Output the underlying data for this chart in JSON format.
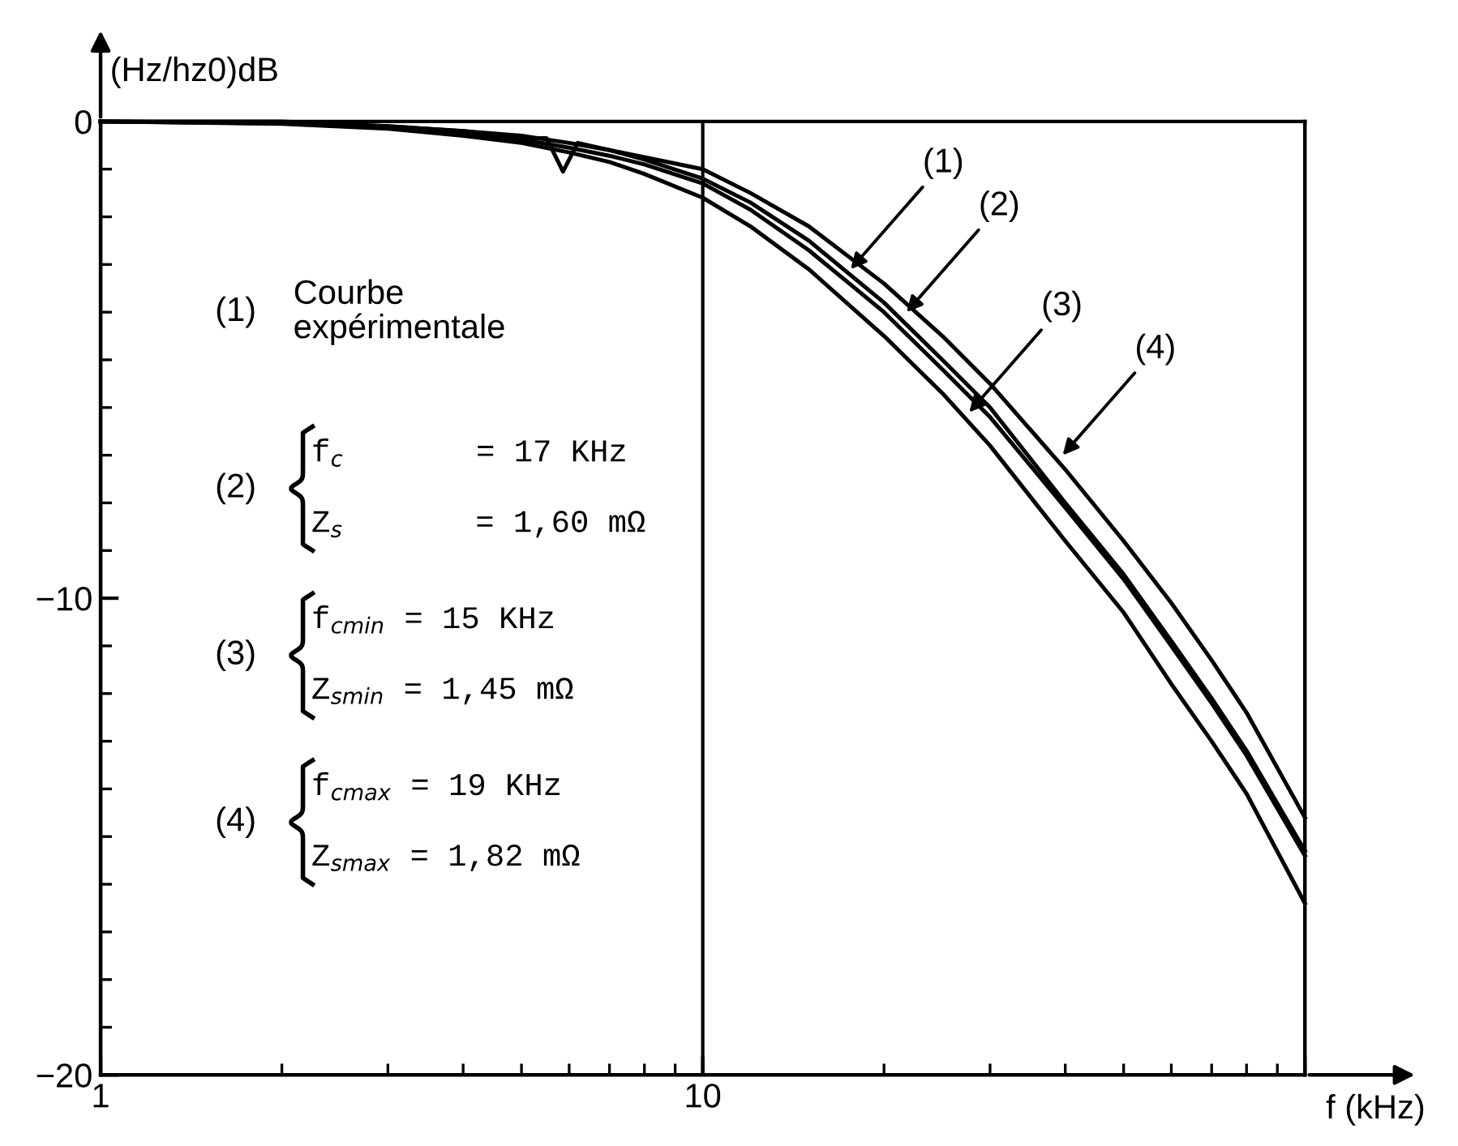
{
  "chart_data": {
    "type": "line",
    "xlabel": "f (kHz)",
    "ylabel": "(Hz/hz0)dB",
    "log": "x",
    "xlim": [
      1,
      100
    ],
    "ylim": [
      -20,
      0
    ],
    "xticks": [
      1,
      10,
      {
        "value": 100,
        "label": null
      }
    ],
    "yticks": [
      -20,
      -10,
      0
    ],
    "grid": "x",
    "series": [
      {
        "color": "#000000",
        "x": [
          1,
          2,
          3,
          4,
          5,
          5.5,
          5.86,
          6.2,
          7,
          8,
          10,
          12,
          15,
          20,
          25,
          30,
          40,
          50,
          60,
          70,
          80,
          100
        ],
        "values": [
          0,
          0,
          -0.1,
          -0.2,
          -0.35,
          -0.35,
          -1.05,
          -0.45,
          -0.6,
          -0.8,
          -1.2,
          -1.7,
          -2.5,
          -3.8,
          -5.0,
          -6.0,
          -8.0,
          -9.5,
          -10.9,
          -12.1,
          -13.2,
          -15.3
        ]
      },
      {
        "color": "#000000",
        "x": [
          1,
          2,
          3,
          4,
          5,
          6,
          7,
          8,
          10,
          12,
          15,
          20,
          25,
          30,
          40,
          50,
          60,
          70,
          80,
          100
        ],
        "values": [
          0,
          -0.04,
          -0.12,
          -0.25,
          -0.38,
          -0.55,
          -0.72,
          -0.9,
          -1.3,
          -1.85,
          -2.7,
          -4.0,
          -5.2,
          -6.2,
          -8.1,
          -9.6,
          -11.0,
          -12.2,
          -13.3,
          -15.4
        ]
      },
      {
        "color": "#000000",
        "x": [
          1,
          2,
          3,
          4,
          5,
          6,
          7,
          8,
          10,
          12,
          15,
          20,
          25,
          30,
          40,
          50,
          60,
          70,
          80,
          100
        ],
        "values": [
          0,
          -0.05,
          -0.15,
          -0.3,
          -0.45,
          -0.65,
          -0.85,
          -1.1,
          -1.6,
          -2.2,
          -3.1,
          -4.5,
          -5.7,
          -6.8,
          -8.8,
          -10.3,
          -11.8,
          -13.0,
          -14.1,
          -16.4
        ]
      },
      {
        "color": "#000000",
        "x": [
          1,
          2,
          3,
          4,
          5,
          6,
          7,
          8,
          10,
          12,
          15,
          20,
          25,
          30,
          40,
          50,
          60,
          70,
          80,
          100
        ],
        "values": [
          0,
          -0.03,
          -0.1,
          -0.2,
          -0.3,
          -0.45,
          -0.6,
          -0.75,
          -1.0,
          -1.5,
          -2.2,
          -3.4,
          -4.5,
          -5.5,
          -7.3,
          -8.8,
          -10.1,
          -11.3,
          -12.4,
          -14.6
        ]
      }
    ],
    "annotations": [
      "(1)",
      "Courbe\nexpérimentale",
      "(2)",
      "f$_{c}$       = 17 KHz",
      "Z$_{s}$       = 1,60 mΩ",
      "(3)",
      "f$_{cmin}$ = 15 KHz",
      "Z$_{smin}$ = 1,45 mΩ",
      "(4)",
      "f$_{cmax}$ = 19 KHz",
      "Z$_{smax}$ = 1,82 mΩ",
      {
        "text": "(1)",
        "x": 17.6,
        "y": -3.1
      },
      {
        "text": "(2)",
        "x": 21.8,
        "y": -4.0
      },
      {
        "text": "(3)",
        "x": 27.7,
        "y": -6.1
      },
      {
        "text": "(4)",
        "x": 39.6,
        "y": -7.0
      }
    ]
  }
}
